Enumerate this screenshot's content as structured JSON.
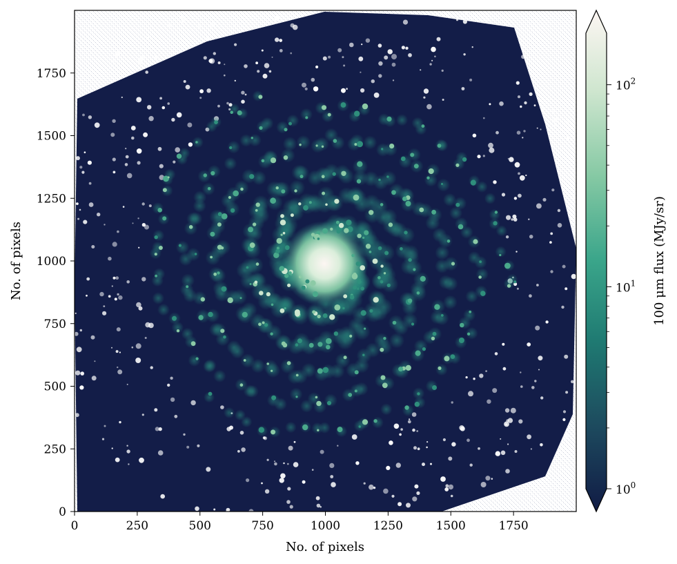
{
  "chart_data": {
    "type": "heatmap",
    "description_free": true,
    "xlabel": "No. of pixels",
    "ylabel": "No. of pixels",
    "xlim": [
      0,
      2000
    ],
    "ylim": [
      0,
      2000
    ],
    "xticks": [
      0,
      250,
      500,
      750,
      1000,
      1250,
      1500,
      1750
    ],
    "xtick_labels": [
      "0",
      "250",
      "500",
      "750",
      "1000",
      "1250",
      "1500",
      "1750"
    ],
    "yticks": [
      0,
      250,
      500,
      750,
      1000,
      1250,
      1500,
      1750
    ],
    "ytick_labels": [
      "0",
      "250",
      "500",
      "750",
      "1000",
      "1250",
      "1500",
      "1750"
    ],
    "grid": false,
    "colorbar": {
      "label": "100 μm flux (MJy/sr)",
      "scale": "log",
      "range": [
        1,
        180
      ],
      "extend": "both",
      "ticks": [
        1,
        10,
        100
      ],
      "tick_labels": [
        "10",
        "10",
        "10"
      ],
      "tick_exponents": [
        "0",
        "1",
        "2"
      ],
      "colormap_stops": [
        "#111b45",
        "#1d4a5e",
        "#1f7a72",
        "#3aa58a",
        "#86c9a4",
        "#cfe6cf",
        "#fdf6f3"
      ]
    }
  }
}
